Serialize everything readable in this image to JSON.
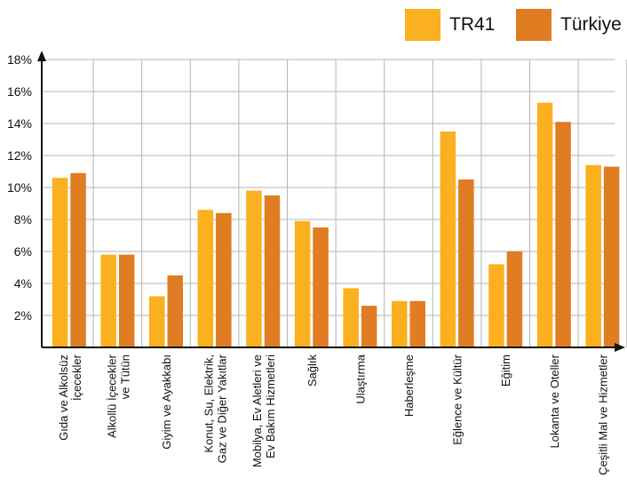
{
  "chart_data": {
    "type": "bar",
    "title": "",
    "xlabel": "",
    "ylabel": "",
    "ylim": [
      0,
      18
    ],
    "yticks": [
      "2%",
      "4%",
      "6%",
      "8%",
      "10%",
      "12%",
      "14%",
      "16%",
      "18%"
    ],
    "ytick_values": [
      2,
      4,
      6,
      8,
      10,
      12,
      14,
      16,
      18
    ],
    "grid": true,
    "legend_position": "top-right",
    "categories": [
      [
        "Gıda ve Alkolsüz",
        "İçecekler"
      ],
      [
        "Alkollü İçecekler",
        "ve Tütün"
      ],
      [
        "Giyim ve Ayakkabı"
      ],
      [
        "Konut, Su, Elektrik,",
        "Gaz ve Diğer Yakıtlar"
      ],
      [
        "Mobilya, Ev Aletleri ve",
        "Ev Bakım Hizmetleri"
      ],
      [
        "Sağlık"
      ],
      [
        "Ulaştırma"
      ],
      [
        "Haberleşme"
      ],
      [
        "Eğlence ve Kültür"
      ],
      [
        "Eğitim"
      ],
      [
        "Lokanta ve Oteller"
      ],
      [
        "Çeşitli Mal ve Hizmetler"
      ]
    ],
    "series": [
      {
        "name": "TR41",
        "color": "#fbb020",
        "values": [
          10.6,
          5.8,
          3.2,
          8.6,
          9.8,
          7.9,
          3.7,
          2.9,
          13.5,
          5.2,
          15.3,
          11.4
        ]
      },
      {
        "name": "Türkiye",
        "color": "#e07c22",
        "values": [
          10.9,
          5.8,
          4.5,
          8.4,
          9.5,
          7.5,
          2.6,
          2.9,
          10.5,
          6.0,
          14.1,
          11.3
        ]
      }
    ]
  }
}
